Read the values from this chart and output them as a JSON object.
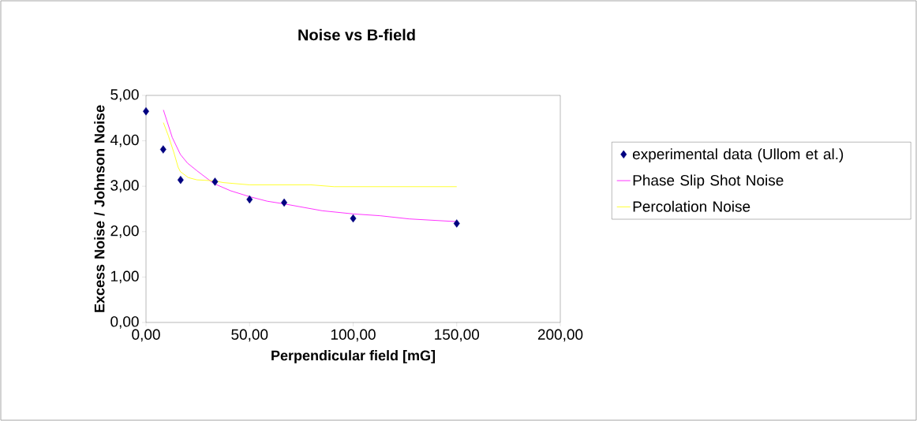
{
  "chart_data": {
    "type": "scatter",
    "title": "Noise vs B-field",
    "xlabel": "Perpendicular field [mG]",
    "ylabel": "Excess Noise / Johnson Noise",
    "xlim": [
      0,
      200
    ],
    "ylim": [
      0,
      5
    ],
    "xticks": [
      {
        "value": 0,
        "label": "0,00"
      },
      {
        "value": 50,
        "label": "50,00"
      },
      {
        "value": 100,
        "label": "100,00"
      },
      {
        "value": 150,
        "label": "150,00"
      },
      {
        "value": 200,
        "label": "200,00"
      }
    ],
    "yticks": [
      {
        "value": 0,
        "label": "0,00"
      },
      {
        "value": 1,
        "label": "1,00"
      },
      {
        "value": 2,
        "label": "2,00"
      },
      {
        "value": 3,
        "label": "3,00"
      },
      {
        "value": 4,
        "label": "4,00"
      },
      {
        "value": 5,
        "label": "5,00"
      }
    ],
    "legend": "right",
    "grid": false,
    "series": [
      {
        "name": "experimental data (Ullom et al.)",
        "marker": "diamond",
        "color": "#000080",
        "x": [
          0,
          8.3,
          16.7,
          33.3,
          50,
          66.7,
          100,
          150
        ],
        "values": [
          4.65,
          3.81,
          3.14,
          3.1,
          2.71,
          2.64,
          2.29,
          2.18
        ]
      },
      {
        "name": "Phase Slip Shot Noise",
        "type": "line",
        "marker": "none",
        "color": "#ff00ff",
        "x": [
          8.4,
          12.7,
          16.6,
          20,
          24.6,
          32.7,
          40.8,
          50,
          58.5,
          66.8,
          85,
          100,
          113,
          127,
          150
        ],
        "values": [
          4.68,
          4.07,
          3.7,
          3.51,
          3.34,
          3.06,
          2.9,
          2.77,
          2.67,
          2.61,
          2.46,
          2.39,
          2.35,
          2.28,
          2.22
        ]
      },
      {
        "name": "Percolation Noise",
        "type": "line",
        "marker": "none",
        "color": "#ffff00",
        "x": [
          8.4,
          10.8,
          13.4,
          15.5,
          16.6,
          20.4,
          24.6,
          32.7,
          37.3,
          50,
          79.6,
          90.8,
          150
        ],
        "values": [
          4.4,
          4.11,
          3.75,
          3.42,
          3.32,
          3.19,
          3.14,
          3.12,
          3.08,
          3.03,
          3.03,
          2.99,
          2.99
        ]
      }
    ]
  }
}
